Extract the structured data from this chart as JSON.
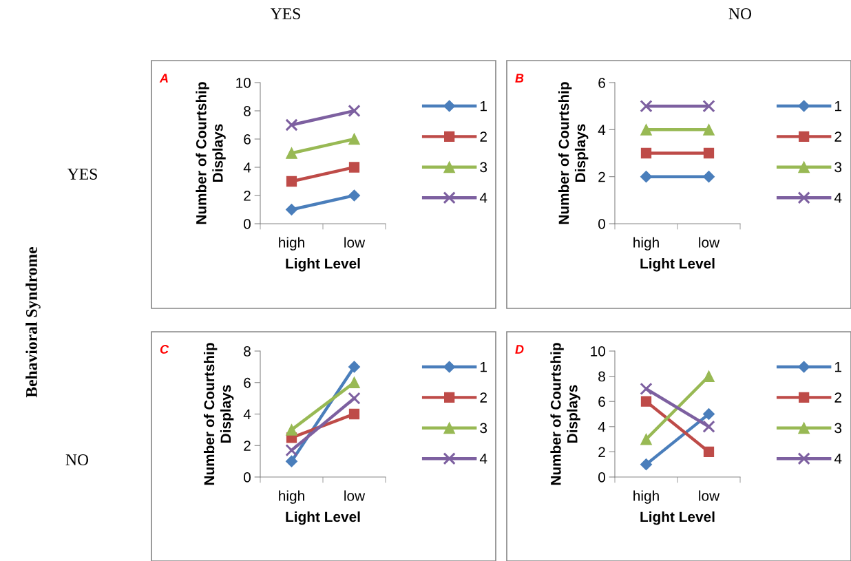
{
  "chart_data": [
    {
      "type": "line",
      "title": "A",
      "xlabel": "Light Level",
      "ylabel": "Number of Courtship Displays",
      "categories": [
        "high",
        "low"
      ],
      "ylim": [
        0,
        10
      ],
      "yticks": [
        0,
        2,
        4,
        6,
        8,
        10
      ],
      "grid": false,
      "legend": "right",
      "series": [
        {
          "name": "1",
          "color": "#4a7ebb",
          "marker": "diamond",
          "values": [
            1,
            2
          ]
        },
        {
          "name": "2",
          "color": "#be4b48",
          "marker": "square",
          "values": [
            3,
            4
          ]
        },
        {
          "name": "3",
          "color": "#98b954",
          "marker": "triangle",
          "values": [
            5,
            6
          ]
        },
        {
          "name": "4",
          "color": "#7d60a0",
          "marker": "cross",
          "values": [
            7,
            8
          ]
        }
      ]
    },
    {
      "type": "line",
      "title": "B",
      "xlabel": "Light Level",
      "ylabel": "Number of Courtship Displays",
      "categories": [
        "high",
        "low"
      ],
      "ylim": [
        0,
        6
      ],
      "yticks": [
        0,
        2,
        4,
        6
      ],
      "grid": false,
      "legend": "right",
      "series": [
        {
          "name": "1",
          "color": "#4a7ebb",
          "marker": "diamond",
          "values": [
            2,
            2
          ]
        },
        {
          "name": "2",
          "color": "#be4b48",
          "marker": "square",
          "values": [
            3,
            3
          ]
        },
        {
          "name": "3",
          "color": "#98b954",
          "marker": "triangle",
          "values": [
            4,
            4
          ]
        },
        {
          "name": "4",
          "color": "#7d60a0",
          "marker": "cross",
          "values": [
            5,
            5
          ]
        }
      ]
    },
    {
      "type": "line",
      "title": "C",
      "xlabel": "Light Level",
      "ylabel": "Number of Courtship Displays",
      "categories": [
        "high",
        "low"
      ],
      "ylim": [
        0,
        8
      ],
      "yticks": [
        0,
        2,
        4,
        6,
        8
      ],
      "grid": false,
      "legend": "right",
      "series": [
        {
          "name": "1",
          "color": "#4a7ebb",
          "marker": "diamond",
          "values": [
            1,
            7
          ]
        },
        {
          "name": "2",
          "color": "#be4b48",
          "marker": "square",
          "values": [
            2.5,
            4
          ]
        },
        {
          "name": "3",
          "color": "#98b954",
          "marker": "triangle",
          "values": [
            3,
            6
          ]
        },
        {
          "name": "4",
          "color": "#7d60a0",
          "marker": "cross",
          "values": [
            1.7,
            5
          ]
        }
      ]
    },
    {
      "type": "line",
      "title": "D",
      "xlabel": "Light Level",
      "ylabel": "Number of Courtship Displays",
      "categories": [
        "high",
        "low"
      ],
      "ylim": [
        0,
        10
      ],
      "yticks": [
        0,
        2,
        4,
        6,
        8,
        10
      ],
      "grid": false,
      "legend": "right",
      "series": [
        {
          "name": "1",
          "color": "#4a7ebb",
          "marker": "diamond",
          "values": [
            1,
            5
          ]
        },
        {
          "name": "2",
          "color": "#be4b48",
          "marker": "square",
          "values": [
            6,
            2
          ]
        },
        {
          "name": "3",
          "color": "#98b954",
          "marker": "triangle",
          "values": [
            3,
            8
          ]
        },
        {
          "name": "4",
          "color": "#7d60a0",
          "marker": "cross",
          "values": [
            7,
            4
          ]
        }
      ]
    },
    {
      "type": "other",
      "annotations": [
        "YES",
        "NO",
        "YES",
        "NO",
        "Behavioral Syndrome"
      ]
    }
  ]
}
